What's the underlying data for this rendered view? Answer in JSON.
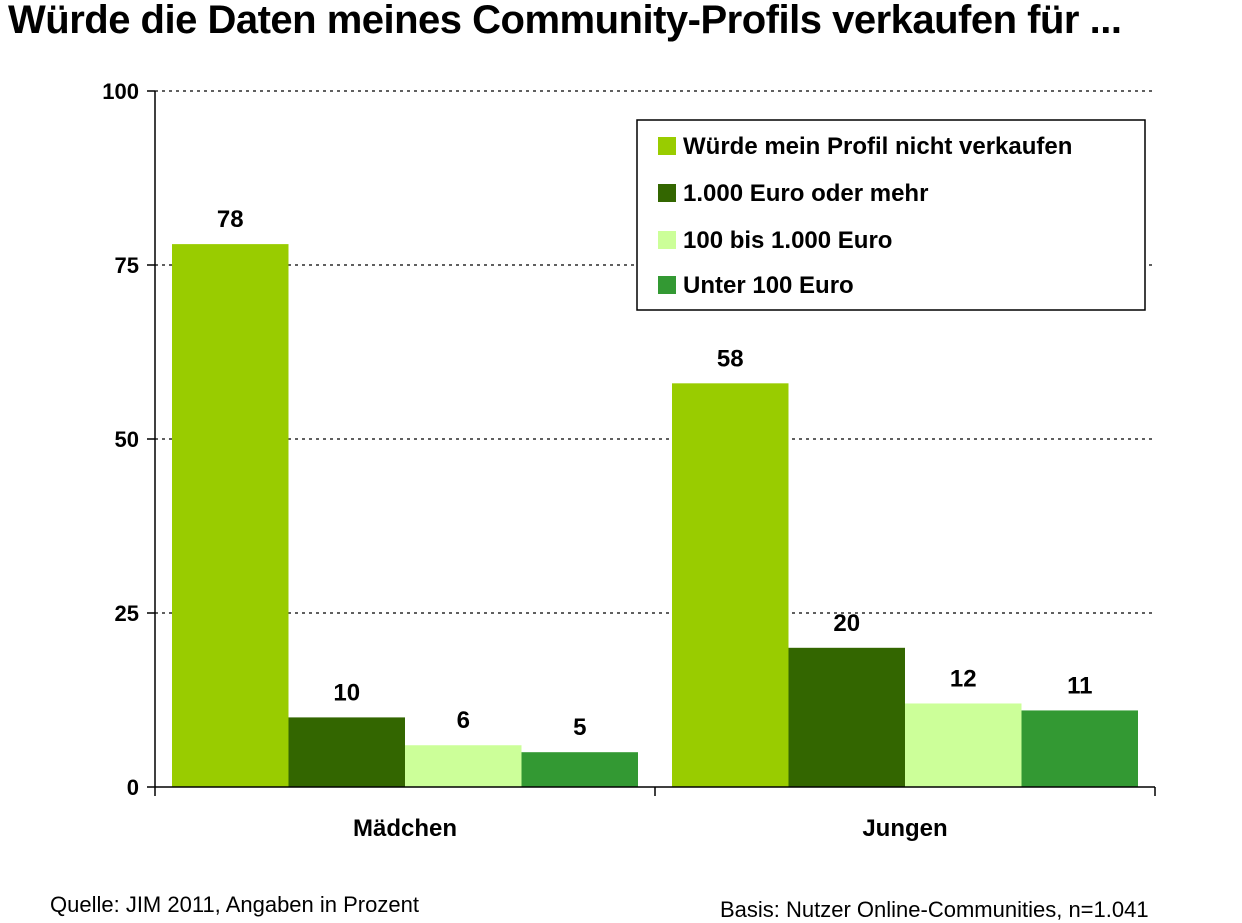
{
  "chart_data": {
    "type": "bar",
    "title": "Würde die Daten meines Community-Profils verkaufen für ...",
    "categories": [
      "Mädchen",
      "Jungen"
    ],
    "series": [
      {
        "name": "Würde mein Profil nicht verkaufen",
        "color": "#99cc00",
        "values": [
          78,
          58
        ]
      },
      {
        "name": "1.000 Euro oder mehr",
        "color": "#336600",
        "values": [
          10,
          20
        ]
      },
      {
        "name": "100 bis 1.000 Euro",
        "color": "#ccff99",
        "values": [
          6,
          12
        ]
      },
      {
        "name": "Unter 100 Euro",
        "color": "#339933",
        "values": [
          5,
          11
        ]
      }
    ],
    "ylim": [
      0,
      100
    ],
    "yticks": [
      0,
      25,
      50,
      75,
      100
    ],
    "xlabel": "",
    "ylabel": "",
    "grid": true,
    "legend": "top-right"
  },
  "notes": {
    "source": "Quelle: JIM 2011, Angaben in Prozent",
    "basis": "Basis: Nutzer Online-Communities, n=1.041"
  }
}
